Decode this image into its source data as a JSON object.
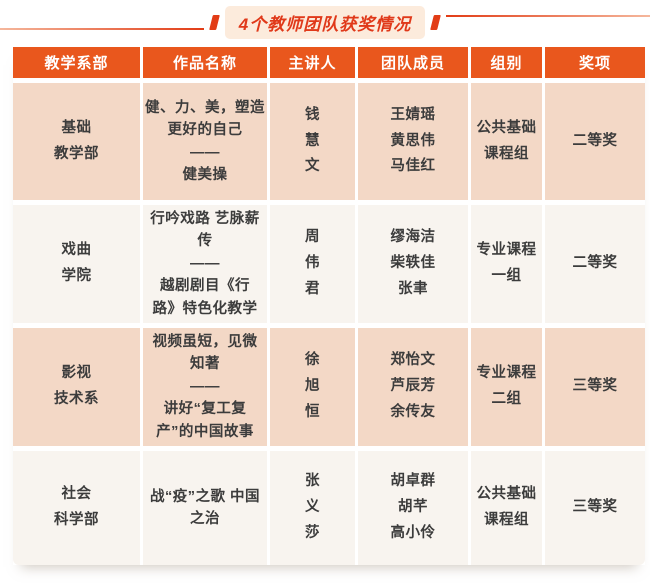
{
  "title": "4个教师团队获奖情况",
  "colors": {
    "header_bg": "#E9571D",
    "row_odd_bg": "#F3D8C6",
    "row_even_bg": "#F8F4EF",
    "title_red": "#E0391A",
    "title_pill_bg": "#FCEBDC",
    "header_text": "#FFFFFF",
    "cell_text": "#3C3C3C"
  },
  "chart_data": {
    "type": "table",
    "title": "4个教师团队获奖情况",
    "columns": [
      "教学系部",
      "作品名称",
      "主讲人",
      "团队成员",
      "组别",
      "奖项"
    ],
    "rows": [
      {
        "department": [
          "基础",
          "教学部"
        ],
        "work": [
          "健、力、美，塑造",
          "更好的自己",
          "——",
          "健美操"
        ],
        "speaker": [
          "钱",
          "慧",
          "文"
        ],
        "members": [
          "王婧瑶",
          "黄思伟",
          "马佳红"
        ],
        "group": [
          "公共基础",
          "课程组"
        ],
        "award": "二等奖"
      },
      {
        "department": [
          "戏曲",
          "学院"
        ],
        "work": [
          "行吟戏路 艺脉薪",
          "传",
          "——",
          "越剧剧目《行",
          "路》特色化教学"
        ],
        "speaker": [
          "周",
          "伟",
          "君"
        ],
        "members": [
          "缪海洁",
          "柴轶佳",
          "张聿"
        ],
        "group": [
          "专业课程",
          "一组"
        ],
        "award": "二等奖"
      },
      {
        "department": [
          "影视",
          "技术系"
        ],
        "work": [
          "视频虽短，见微",
          "知著",
          "——",
          "讲好“复工复",
          "产”的中国故事"
        ],
        "speaker": [
          "徐",
          "旭",
          "恒"
        ],
        "members": [
          "郑怡文",
          "芦辰芳",
          "余传友"
        ],
        "group": [
          "专业课程",
          "二组"
        ],
        "award": "三等奖"
      },
      {
        "department": [
          "社会",
          "科学部"
        ],
        "work": [
          "战“疫”之歌 中国",
          "之治"
        ],
        "speaker": [
          "张",
          "义",
          "莎"
        ],
        "members": [
          "胡卓群",
          "胡芊",
          "高小伶"
        ],
        "group": [
          "公共基础",
          "课程组"
        ],
        "award": "三等奖"
      }
    ]
  }
}
